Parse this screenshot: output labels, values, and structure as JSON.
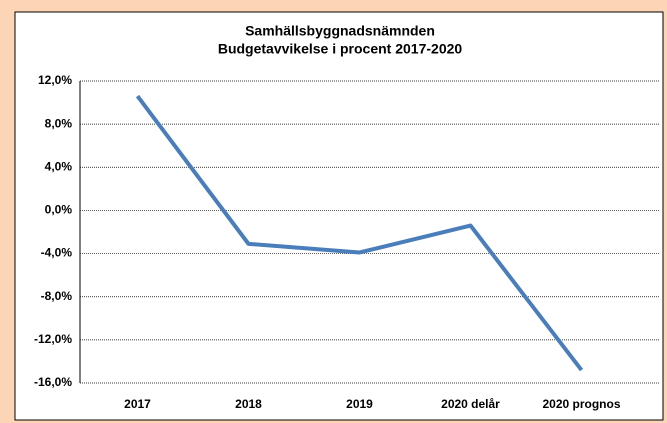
{
  "chart_data": {
    "type": "line",
    "title": "Samhällsbyggnadsnämnden",
    "subtitle": "Budgetavvikelse i procent 2017-2020",
    "categories": [
      "2017",
      "2018",
      "2019",
      "2020 delår",
      "2020 prognos"
    ],
    "series": [
      {
        "name": "Budgetavvikelse",
        "color": "#4a7ebb",
        "values": [
          10.6,
          -3.1,
          -3.9,
          -1.4,
          -14.8
        ]
      }
    ],
    "ylim": [
      -16,
      12
    ],
    "yticks": [
      {
        "value": -16,
        "label": "-16,0%"
      },
      {
        "value": -12,
        "label": "-12,0%"
      },
      {
        "value": -8,
        "label": "-8,0%"
      },
      {
        "value": -4,
        "label": "-4,0%"
      },
      {
        "value": 0,
        "label": "0,0%"
      },
      {
        "value": 4,
        "label": "4,0%"
      },
      {
        "value": 8,
        "label": "8,0%"
      },
      {
        "value": 12,
        "label": "12,0%"
      }
    ],
    "grid": true
  }
}
